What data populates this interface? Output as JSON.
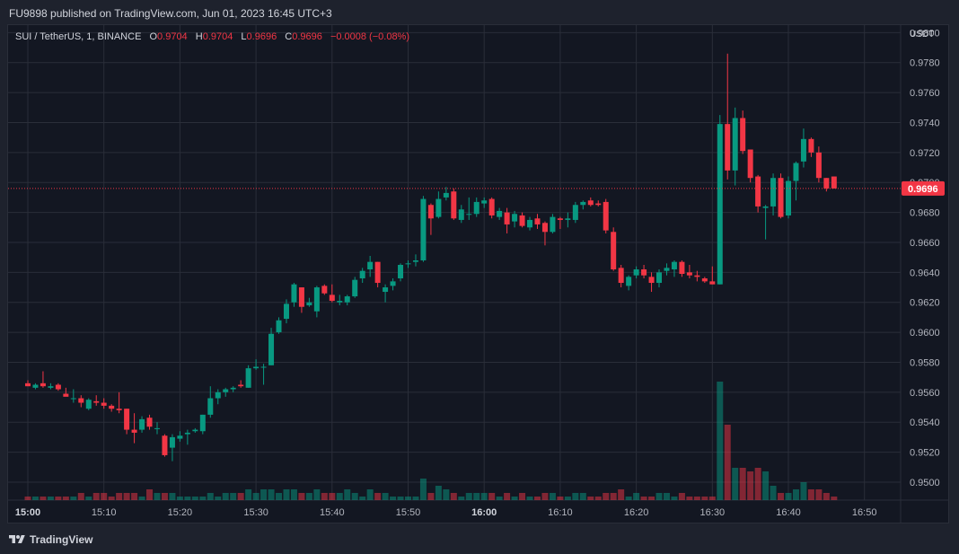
{
  "header": {
    "published_text": "FU9898 published on TradingView.com, Jun 01, 2023 16:45 UTC+3"
  },
  "legend": {
    "symbol": "SUI / TetherUS, 1, BINANCE",
    "o_label": "O",
    "o_value": "0.9704",
    "h_label": "H",
    "h_value": "0.9704",
    "l_label": "L",
    "l_value": "0.9696",
    "c_label": "C",
    "c_value": "0.9696",
    "change": "−0.0008 (−0.08%)"
  },
  "axis": {
    "currency": "USDT",
    "last_price_label": "0.9696"
  },
  "footer": {
    "brand": "TradingView"
  },
  "colors": {
    "up": "#089981",
    "down": "#f23645",
    "background": "#131722",
    "grid": "#2a2e39",
    "text": "#b2b5be"
  },
  "chart_data": {
    "type": "candlestick",
    "symbol": "SUI/USDT",
    "interval": "1",
    "exchange": "BINANCE",
    "ylim": [
      0.9488,
      0.9805
    ],
    "y_ticks": [
      "0.9500",
      "0.9520",
      "0.9540",
      "0.9560",
      "0.9580",
      "0.9600",
      "0.9620",
      "0.9640",
      "0.9660",
      "0.9680",
      "0.9700",
      "0.9720",
      "0.9740",
      "0.9760",
      "0.9780",
      "0.9800"
    ],
    "x_ticks": [
      {
        "label": "15:00",
        "minute": 0,
        "bold": true
      },
      {
        "label": "15:10",
        "minute": 10
      },
      {
        "label": "15:20",
        "minute": 20
      },
      {
        "label": "15:30",
        "minute": 30
      },
      {
        "label": "15:40",
        "minute": 40
      },
      {
        "label": "15:50",
        "minute": 50
      },
      {
        "label": "16:00",
        "minute": 60,
        "bold": true
      },
      {
        "label": "16:10",
        "minute": 70
      },
      {
        "label": "16:20",
        "minute": 80
      },
      {
        "label": "16:30",
        "minute": 90
      },
      {
        "label": "16:40",
        "minute": 100
      },
      {
        "label": "16:50",
        "minute": 110
      }
    ],
    "last_price": 0.9696,
    "start_time": "15:00",
    "minute_range": [
      0,
      113
    ],
    "candles": [
      {
        "m": 0,
        "o": 0.9566,
        "h": 0.9568,
        "l": 0.9564,
        "c": 0.9564,
        "v": 1
      },
      {
        "m": 1,
        "o": 0.9563,
        "h": 0.9566,
        "l": 0.9562,
        "c": 0.9565,
        "v": 1
      },
      {
        "m": 2,
        "o": 0.9566,
        "h": 0.9574,
        "l": 0.9563,
        "c": 0.9564,
        "v": 1
      },
      {
        "m": 3,
        "o": 0.9563,
        "h": 0.9566,
        "l": 0.9562,
        "c": 0.9564,
        "v": 1
      },
      {
        "m": 4,
        "o": 0.9565,
        "h": 0.9566,
        "l": 0.9561,
        "c": 0.9562,
        "v": 1
      },
      {
        "m": 5,
        "o": 0.9559,
        "h": 0.9563,
        "l": 0.9558,
        "c": 0.9557,
        "v": 1
      },
      {
        "m": 6,
        "o": 0.9556,
        "h": 0.9562,
        "l": 0.9553,
        "c": 0.9556,
        "v": 1
      },
      {
        "m": 7,
        "o": 0.9556,
        "h": 0.9558,
        "l": 0.955,
        "c": 0.9553,
        "v": 2
      },
      {
        "m": 8,
        "o": 0.9549,
        "h": 0.9556,
        "l": 0.9548,
        "c": 0.9555,
        "v": 1
      },
      {
        "m": 9,
        "o": 0.9554,
        "h": 0.9558,
        "l": 0.9551,
        "c": 0.9553,
        "v": 2
      },
      {
        "m": 10,
        "o": 0.9553,
        "h": 0.9556,
        "l": 0.9549,
        "c": 0.9551,
        "v": 2
      },
      {
        "m": 11,
        "o": 0.9551,
        "h": 0.9552,
        "l": 0.9547,
        "c": 0.9549,
        "v": 1
      },
      {
        "m": 12,
        "o": 0.9549,
        "h": 0.956,
        "l": 0.9546,
        "c": 0.9548,
        "v": 2
      },
      {
        "m": 13,
        "o": 0.9549,
        "h": 0.9549,
        "l": 0.9532,
        "c": 0.9535,
        "v": 2
      },
      {
        "m": 14,
        "o": 0.9535,
        "h": 0.9546,
        "l": 0.9526,
        "c": 0.9533,
        "v": 2
      },
      {
        "m": 15,
        "o": 0.9535,
        "h": 0.9544,
        "l": 0.9533,
        "c": 0.9542,
        "v": 1
      },
      {
        "m": 16,
        "o": 0.9543,
        "h": 0.9545,
        "l": 0.9535,
        "c": 0.9537,
        "v": 3
      },
      {
        "m": 17,
        "o": 0.9536,
        "h": 0.954,
        "l": 0.9532,
        "c": 0.9536,
        "v": 2
      },
      {
        "m": 18,
        "o": 0.9531,
        "h": 0.9532,
        "l": 0.9517,
        "c": 0.9518,
        "v": 2
      },
      {
        "m": 19,
        "o": 0.9523,
        "h": 0.9532,
        "l": 0.9514,
        "c": 0.953,
        "v": 2
      },
      {
        "m": 20,
        "o": 0.9529,
        "h": 0.9534,
        "l": 0.9527,
        "c": 0.9531,
        "v": 1
      },
      {
        "m": 21,
        "o": 0.9532,
        "h": 0.9535,
        "l": 0.9525,
        "c": 0.9533,
        "v": 1
      },
      {
        "m": 22,
        "o": 0.9534,
        "h": 0.9536,
        "l": 0.9533,
        "c": 0.9535,
        "v": 1
      },
      {
        "m": 23,
        "o": 0.9534,
        "h": 0.9545,
        "l": 0.9532,
        "c": 0.9545,
        "v": 1
      },
      {
        "m": 24,
        "o": 0.9545,
        "h": 0.9564,
        "l": 0.9543,
        "c": 0.9556,
        "v": 2
      },
      {
        "m": 25,
        "o": 0.9556,
        "h": 0.9562,
        "l": 0.9552,
        "c": 0.956,
        "v": 1
      },
      {
        "m": 26,
        "o": 0.956,
        "h": 0.9563,
        "l": 0.9557,
        "c": 0.9562,
        "v": 2
      },
      {
        "m": 27,
        "o": 0.9562,
        "h": 0.9564,
        "l": 0.956,
        "c": 0.9563,
        "v": 2
      },
      {
        "m": 28,
        "o": 0.9565,
        "h": 0.9568,
        "l": 0.9563,
        "c": 0.9564,
        "v": 2
      },
      {
        "m": 29,
        "o": 0.9563,
        "h": 0.9578,
        "l": 0.9563,
        "c": 0.9576,
        "v": 3
      },
      {
        "m": 30,
        "o": 0.9576,
        "h": 0.9582,
        "l": 0.9575,
        "c": 0.9577,
        "v": 2
      },
      {
        "m": 31,
        "o": 0.9577,
        "h": 0.9579,
        "l": 0.9565,
        "c": 0.9577,
        "v": 3
      },
      {
        "m": 32,
        "o": 0.9578,
        "h": 0.9603,
        "l": 0.9578,
        "c": 0.9599,
        "v": 3
      },
      {
        "m": 33,
        "o": 0.96,
        "h": 0.961,
        "l": 0.9599,
        "c": 0.9608,
        "v": 2
      },
      {
        "m": 34,
        "o": 0.9609,
        "h": 0.9622,
        "l": 0.9606,
        "c": 0.9619,
        "v": 3
      },
      {
        "m": 35,
        "o": 0.962,
        "h": 0.9633,
        "l": 0.9617,
        "c": 0.9632,
        "v": 3
      },
      {
        "m": 36,
        "o": 0.963,
        "h": 0.963,
        "l": 0.9613,
        "c": 0.9617,
        "v": 2
      },
      {
        "m": 37,
        "o": 0.9618,
        "h": 0.9623,
        "l": 0.9617,
        "c": 0.962,
        "v": 2
      },
      {
        "m": 38,
        "o": 0.9614,
        "h": 0.9631,
        "l": 0.961,
        "c": 0.963,
        "v": 3
      },
      {
        "m": 39,
        "o": 0.9631,
        "h": 0.9632,
        "l": 0.9625,
        "c": 0.9626,
        "v": 2
      },
      {
        "m": 40,
        "o": 0.9625,
        "h": 0.9632,
        "l": 0.962,
        "c": 0.9621,
        "v": 2
      },
      {
        "m": 41,
        "o": 0.962,
        "h": 0.9625,
        "l": 0.9618,
        "c": 0.9621,
        "v": 2
      },
      {
        "m": 42,
        "o": 0.962,
        "h": 0.9625,
        "l": 0.9618,
        "c": 0.9624,
        "v": 3
      },
      {
        "m": 43,
        "o": 0.9624,
        "h": 0.9637,
        "l": 0.9623,
        "c": 0.9635,
        "v": 2
      },
      {
        "m": 44,
        "o": 0.9636,
        "h": 0.9643,
        "l": 0.9633,
        "c": 0.9641,
        "v": 1
      },
      {
        "m": 45,
        "o": 0.9642,
        "h": 0.9651,
        "l": 0.9637,
        "c": 0.9647,
        "v": 3
      },
      {
        "m": 46,
        "o": 0.9647,
        "h": 0.9647,
        "l": 0.963,
        "c": 0.9633,
        "v": 2
      },
      {
        "m": 47,
        "o": 0.9627,
        "h": 0.9632,
        "l": 0.962,
        "c": 0.963,
        "v": 2
      },
      {
        "m": 48,
        "o": 0.9631,
        "h": 0.9636,
        "l": 0.9628,
        "c": 0.9634,
        "v": 1
      },
      {
        "m": 49,
        "o": 0.9636,
        "h": 0.9646,
        "l": 0.9634,
        "c": 0.9645,
        "v": 1
      },
      {
        "m": 50,
        "o": 0.9646,
        "h": 0.9648,
        "l": 0.9643,
        "c": 0.9646,
        "v": 1
      },
      {
        "m": 51,
        "o": 0.9647,
        "h": 0.9652,
        "l": 0.9644,
        "c": 0.9648,
        "v": 1
      },
      {
        "m": 52,
        "o": 0.9648,
        "h": 0.9691,
        "l": 0.9647,
        "c": 0.9689,
        "v": 6
      },
      {
        "m": 53,
        "o": 0.9685,
        "h": 0.9686,
        "l": 0.9665,
        "c": 0.9676,
        "v": 2
      },
      {
        "m": 54,
        "o": 0.9677,
        "h": 0.9694,
        "l": 0.9676,
        "c": 0.9689,
        "v": 4
      },
      {
        "m": 55,
        "o": 0.969,
        "h": 0.9697,
        "l": 0.9688,
        "c": 0.9693,
        "v": 3
      },
      {
        "m": 56,
        "o": 0.9694,
        "h": 0.9696,
        "l": 0.9675,
        "c": 0.9676,
        "v": 2
      },
      {
        "m": 57,
        "o": 0.9675,
        "h": 0.9685,
        "l": 0.9673,
        "c": 0.9682,
        "v": 1
      },
      {
        "m": 58,
        "o": 0.9679,
        "h": 0.969,
        "l": 0.9675,
        "c": 0.9679,
        "v": 2
      },
      {
        "m": 59,
        "o": 0.9679,
        "h": 0.969,
        "l": 0.9677,
        "c": 0.9687,
        "v": 2
      },
      {
        "m": 60,
        "o": 0.9686,
        "h": 0.969,
        "l": 0.9683,
        "c": 0.9688,
        "v": 2
      },
      {
        "m": 61,
        "o": 0.9689,
        "h": 0.969,
        "l": 0.9676,
        "c": 0.9678,
        "v": 2
      },
      {
        "m": 62,
        "o": 0.9677,
        "h": 0.9683,
        "l": 0.9675,
        "c": 0.9681,
        "v": 1
      },
      {
        "m": 63,
        "o": 0.968,
        "h": 0.9683,
        "l": 0.9666,
        "c": 0.9672,
        "v": 2
      },
      {
        "m": 64,
        "o": 0.9674,
        "h": 0.9681,
        "l": 0.967,
        "c": 0.9679,
        "v": 1
      },
      {
        "m": 65,
        "o": 0.9678,
        "h": 0.968,
        "l": 0.967,
        "c": 0.9671,
        "v": 2
      },
      {
        "m": 66,
        "o": 0.967,
        "h": 0.9677,
        "l": 0.9668,
        "c": 0.9675,
        "v": 1
      },
      {
        "m": 67,
        "o": 0.9676,
        "h": 0.9679,
        "l": 0.9669,
        "c": 0.9672,
        "v": 1
      },
      {
        "m": 68,
        "o": 0.9673,
        "h": 0.9674,
        "l": 0.9658,
        "c": 0.9667,
        "v": 2
      },
      {
        "m": 69,
        "o": 0.9667,
        "h": 0.9679,
        "l": 0.9666,
        "c": 0.9677,
        "v": 2
      },
      {
        "m": 70,
        "o": 0.9676,
        "h": 0.9677,
        "l": 0.9669,
        "c": 0.9675,
        "v": 1
      },
      {
        "m": 71,
        "o": 0.9675,
        "h": 0.968,
        "l": 0.967,
        "c": 0.9676,
        "v": 1
      },
      {
        "m": 72,
        "o": 0.9675,
        "h": 0.9687,
        "l": 0.9673,
        "c": 0.9685,
        "v": 2
      },
      {
        "m": 73,
        "o": 0.9685,
        "h": 0.9688,
        "l": 0.9682,
        "c": 0.9687,
        "v": 2
      },
      {
        "m": 74,
        "o": 0.9688,
        "h": 0.969,
        "l": 0.9684,
        "c": 0.9685,
        "v": 1
      },
      {
        "m": 75,
        "o": 0.9686,
        "h": 0.9688,
        "l": 0.9684,
        "c": 0.9685,
        "v": 1
      },
      {
        "m": 76,
        "o": 0.9687,
        "h": 0.9689,
        "l": 0.9666,
        "c": 0.9668,
        "v": 2
      },
      {
        "m": 77,
        "o": 0.9667,
        "h": 0.967,
        "l": 0.9641,
        "c": 0.9642,
        "v": 2
      },
      {
        "m": 78,
        "o": 0.9643,
        "h": 0.9645,
        "l": 0.963,
        "c": 0.9633,
        "v": 3
      },
      {
        "m": 79,
        "o": 0.9631,
        "h": 0.9638,
        "l": 0.9628,
        "c": 0.9637,
        "v": 1
      },
      {
        "m": 80,
        "o": 0.9638,
        "h": 0.9644,
        "l": 0.9636,
        "c": 0.9642,
        "v": 2
      },
      {
        "m": 81,
        "o": 0.9642,
        "h": 0.9645,
        "l": 0.9636,
        "c": 0.9638,
        "v": 1
      },
      {
        "m": 82,
        "o": 0.9637,
        "h": 0.964,
        "l": 0.9627,
        "c": 0.9633,
        "v": 1
      },
      {
        "m": 83,
        "o": 0.9633,
        "h": 0.9642,
        "l": 0.963,
        "c": 0.964,
        "v": 2
      },
      {
        "m": 84,
        "o": 0.9641,
        "h": 0.9646,
        "l": 0.9638,
        "c": 0.9643,
        "v": 2
      },
      {
        "m": 85,
        "o": 0.9642,
        "h": 0.9648,
        "l": 0.9637,
        "c": 0.9647,
        "v": 1
      },
      {
        "m": 86,
        "o": 0.9647,
        "h": 0.9648,
        "l": 0.9637,
        "c": 0.9639,
        "v": 2
      },
      {
        "m": 87,
        "o": 0.964,
        "h": 0.9645,
        "l": 0.9636,
        "c": 0.9638,
        "v": 1
      },
      {
        "m": 88,
        "o": 0.9638,
        "h": 0.9641,
        "l": 0.9634,
        "c": 0.9637,
        "v": 1
      },
      {
        "m": 89,
        "o": 0.9636,
        "h": 0.9637,
        "l": 0.9633,
        "c": 0.9634,
        "v": 1
      },
      {
        "m": 90,
        "o": 0.9634,
        "h": 0.9644,
        "l": 0.9632,
        "c": 0.9632,
        "v": 1
      },
      {
        "m": 91,
        "o": 0.9632,
        "h": 0.9745,
        "l": 0.9632,
        "c": 0.9739,
        "v": 33
      },
      {
        "m": 92,
        "o": 0.9739,
        "h": 0.9786,
        "l": 0.9702,
        "c": 0.9708,
        "v": 21
      },
      {
        "m": 93,
        "o": 0.9708,
        "h": 0.975,
        "l": 0.9698,
        "c": 0.9743,
        "v": 9
      },
      {
        "m": 94,
        "o": 0.9743,
        "h": 0.9748,
        "l": 0.9719,
        "c": 0.9721,
        "v": 9
      },
      {
        "m": 95,
        "o": 0.9722,
        "h": 0.9722,
        "l": 0.97,
        "c": 0.9703,
        "v": 8
      },
      {
        "m": 96,
        "o": 0.9704,
        "h": 0.9705,
        "l": 0.968,
        "c": 0.9684,
        "v": 9
      },
      {
        "m": 97,
        "o": 0.9683,
        "h": 0.9685,
        "l": 0.9662,
        "c": 0.9684,
        "v": 8
      },
      {
        "m": 98,
        "o": 0.9684,
        "h": 0.9706,
        "l": 0.9678,
        "c": 0.9703,
        "v": 4
      },
      {
        "m": 99,
        "o": 0.9703,
        "h": 0.9706,
        "l": 0.9676,
        "c": 0.9677,
        "v": 2
      },
      {
        "m": 100,
        "o": 0.9678,
        "h": 0.9704,
        "l": 0.9676,
        "c": 0.9701,
        "v": 2
      },
      {
        "m": 101,
        "o": 0.9701,
        "h": 0.9714,
        "l": 0.9688,
        "c": 0.9713,
        "v": 3
      },
      {
        "m": 102,
        "o": 0.9714,
        "h": 0.9736,
        "l": 0.971,
        "c": 0.9729,
        "v": 5
      },
      {
        "m": 103,
        "o": 0.9729,
        "h": 0.973,
        "l": 0.9717,
        "c": 0.972,
        "v": 3
      },
      {
        "m": 104,
        "o": 0.972,
        "h": 0.9724,
        "l": 0.97,
        "c": 0.9703,
        "v": 3
      },
      {
        "m": 105,
        "o": 0.9703,
        "h": 0.9703,
        "l": 0.9694,
        "c": 0.9696,
        "v": 2
      },
      {
        "m": 106,
        "o": 0.9704,
        "h": 0.9704,
        "l": 0.9696,
        "c": 0.9696,
        "v": 1
      }
    ]
  }
}
